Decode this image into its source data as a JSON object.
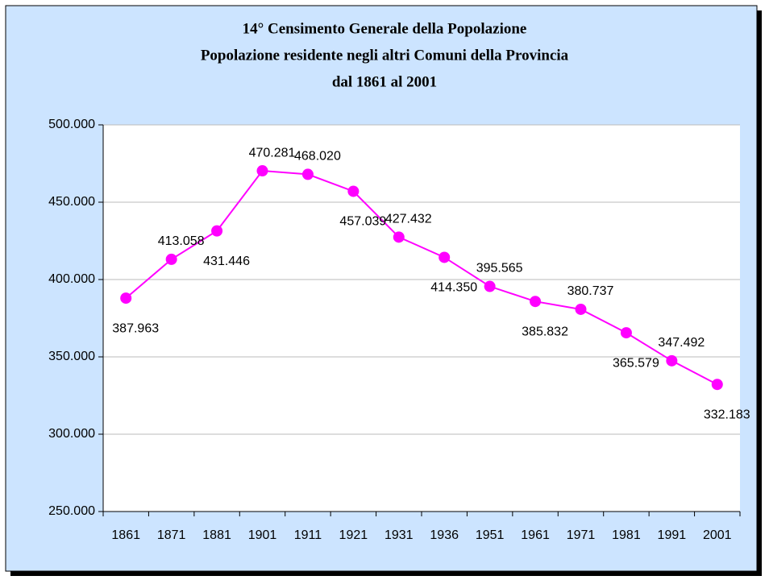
{
  "chart_data": {
    "type": "line",
    "title": [
      "14° Censimento Generale della Popolazione",
      "Popolazione residente negli altri Comuni  della Provincia",
      "dal 1861 al 2001"
    ],
    "categories": [
      "1861",
      "1871",
      "1881",
      "1901",
      "1911",
      "1921",
      "1931",
      "1936",
      "1951",
      "1961",
      "1971",
      "1981",
      "1991",
      "2001"
    ],
    "series": [
      {
        "color": "#ff00ff",
        "values": [
          387963,
          413058,
          431446,
          470281,
          468020,
          457039,
          427432,
          414350,
          395565,
          385832,
          380737,
          365579,
          347492,
          332183
        ],
        "value_labels": [
          "387.963",
          "413.058",
          "431.446",
          "470.281",
          "468.020",
          "457.039",
          "427.432",
          "414.350",
          "395.565",
          "385.832",
          "380.737",
          "365.579",
          "347.492",
          "332.183"
        ]
      }
    ],
    "ylim": [
      250000,
      500000
    ],
    "yticks": [
      {
        "value": 250000,
        "label": "250.000"
      },
      {
        "value": 300000,
        "label": "300.000"
      },
      {
        "value": 350000,
        "label": "350.000"
      },
      {
        "value": 400000,
        "label": "400.000"
      },
      {
        "value": 450000,
        "label": "450.000"
      },
      {
        "value": 500000,
        "label": "500.000"
      }
    ],
    "grid": true
  }
}
